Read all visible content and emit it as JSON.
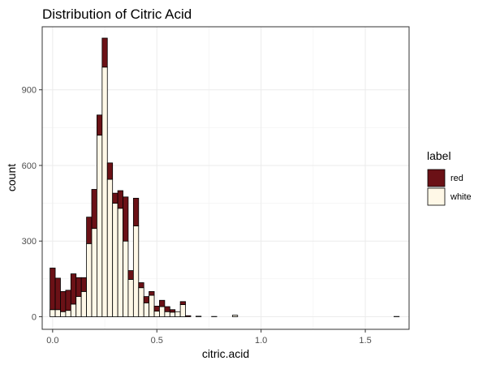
{
  "chart_data": {
    "type": "bar",
    "stacked": true,
    "title": "Distribution of Citric Acid",
    "xlabel": "citric.acid",
    "ylabel": "count",
    "xlim": [
      -0.05,
      1.71
    ],
    "ylim": [
      -50,
      1150
    ],
    "x_ticks": [
      0.0,
      0.5,
      1.0,
      1.5
    ],
    "x_tick_labels": [
      "0.0",
      "0.5",
      "1.0",
      "1.5"
    ],
    "y_ticks": [
      0,
      300,
      600,
      900
    ],
    "y_tick_labels": [
      "0",
      "300",
      "600",
      "900"
    ],
    "bin_width": 0.025,
    "grid": true,
    "legend": {
      "title": "label",
      "position": "right"
    },
    "x": [
      0.0,
      0.025,
      0.05,
      0.075,
      0.1,
      0.125,
      0.15,
      0.175,
      0.2,
      0.225,
      0.25,
      0.275,
      0.3,
      0.325,
      0.35,
      0.375,
      0.4,
      0.425,
      0.45,
      0.475,
      0.5,
      0.525,
      0.55,
      0.575,
      0.6,
      0.625,
      0.65,
      0.675,
      0.7,
      0.725,
      0.75,
      0.775,
      0.8,
      0.825,
      0.85,
      0.875,
      0.9,
      0.925,
      0.95,
      0.975,
      1.0,
      1.025,
      1.05,
      1.075,
      1.1,
      1.125,
      1.15,
      1.175,
      1.2,
      1.225,
      1.25,
      1.275,
      1.3,
      1.325,
      1.35,
      1.375,
      1.4,
      1.425,
      1.45,
      1.475,
      1.5,
      1.525,
      1.55,
      1.575,
      1.6,
      1.625,
      1.65
    ],
    "series": [
      {
        "name": "white",
        "color": "#fff8e7",
        "values": [
          28,
          28,
          20,
          25,
          50,
          80,
          100,
          290,
          350,
          720,
          990,
          545,
          450,
          430,
          300,
          148,
          360,
          115,
          55,
          85,
          22,
          40,
          20,
          18,
          20,
          48,
          0,
          0,
          2,
          0,
          0,
          1,
          0,
          0,
          0,
          6,
          0,
          0,
          0,
          0,
          0,
          0,
          0,
          0,
          0,
          0,
          0,
          0,
          0,
          0,
          0,
          0,
          0,
          0,
          0,
          0,
          0,
          0,
          0,
          0,
          0,
          0,
          0,
          0,
          0,
          0,
          1
        ]
      },
      {
        "name": "red",
        "color": "#6b1116",
        "values": [
          165,
          125,
          80,
          80,
          120,
          75,
          55,
          105,
          155,
          80,
          115,
          65,
          40,
          70,
          175,
          35,
          110,
          20,
          25,
          15,
          20,
          25,
          20,
          10,
          0,
          12,
          4,
          0,
          0,
          0,
          0,
          0,
          0,
          0,
          0,
          0,
          0,
          0,
          0,
          0,
          0,
          0,
          0,
          0,
          0,
          0,
          0,
          0,
          0,
          0,
          0,
          0,
          0,
          0,
          0,
          0,
          0,
          0,
          0,
          0,
          0,
          0,
          0,
          0,
          0,
          0,
          0
        ]
      }
    ]
  },
  "legend_entries": [
    {
      "label": "red",
      "color": "#6b1116"
    },
    {
      "label": "white",
      "color": "#fff8e7"
    }
  ]
}
